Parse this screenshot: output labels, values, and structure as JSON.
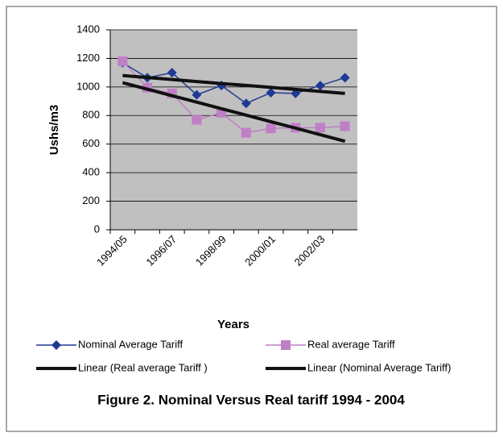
{
  "chart_data": {
    "type": "line",
    "title": "Figure 2. Nominal Versus Real tariff 1994 - 2004",
    "x_label": "Years",
    "y_label": "Ushs/m3",
    "categories": [
      "1994/05",
      null,
      "1996/07",
      null,
      "1998/99",
      null,
      "2000/01",
      null,
      "2002/03",
      null
    ],
    "series": [
      {
        "name": "Nominal Average Tariff",
        "color": "#1f3a93",
        "marker": "diamond",
        "width": 1.5,
        "values": [
          1170,
          1065,
          1100,
          945,
          1010,
          885,
          960,
          955,
          1010,
          1065
        ]
      },
      {
        "name": "Real average Tariff",
        "color": "#bf7fc6",
        "marker": "square",
        "width": 1.5,
        "values": [
          1180,
          995,
          955,
          770,
          820,
          680,
          710,
          715,
          715,
          725
        ]
      },
      {
        "name": "Linear (Real average Tariff )",
        "color": "#111111",
        "marker": "none",
        "width": 4,
        "values": [
          1030,
          985,
          939,
          894,
          848,
          803,
          757,
          712,
          666,
          620
        ]
      },
      {
        "name": "Linear (Nominal Average Tariff)",
        "color": "#111111",
        "marker": "none",
        "width": 4,
        "values": [
          1080,
          1066,
          1052,
          1038,
          1024,
          1011,
          997,
          983,
          969,
          955
        ]
      }
    ],
    "ylim": [
      0,
      1400
    ],
    "yticks": [
      0,
      200,
      400,
      600,
      800,
      1000,
      1200,
      1400
    ],
    "grid": true
  }
}
